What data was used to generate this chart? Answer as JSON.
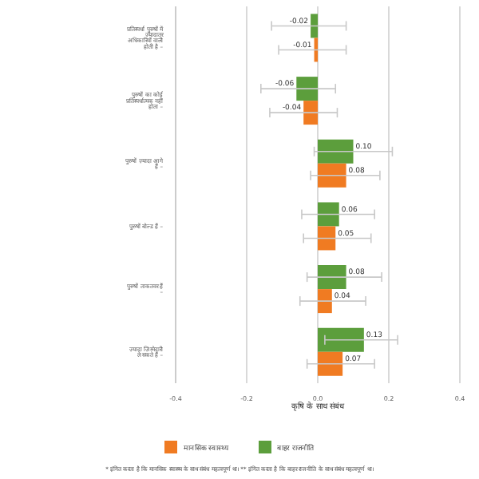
{
  "chart_data": {
    "type": "bar",
    "orientation": "horizontal",
    "xlabel": "कृषि के साथ संबंध",
    "categories": [
      "प्रतिस्पर्धा पुरुषों में ज़्यादातर अधिकारियों वाली होती है –",
      "पुरुषों का कोई प्रतिस्पर्धात्मक नहीं होता –",
      "पुरुषों ज़्यादा आगे हैं –",
      "पुरुषों बोल्ड हैं –",
      "पुरुषों ताकतवर हैं –",
      "ज़्यादा ज़िम्मेदारी ले सकते हैं –"
    ],
    "series": [
      {
        "name": "बाहर राजनीति",
        "color": "#5c9e3c",
        "values": [
          -0.02,
          -0.06,
          0.1,
          0.06,
          0.08,
          0.13
        ],
        "errors": [
          [
            -0.13,
            0.08
          ],
          [
            -0.16,
            0.05
          ],
          [
            -0.01,
            0.21
          ],
          [
            -0.045,
            0.16
          ],
          [
            -0.03,
            0.18
          ],
          [
            0.02,
            0.225
          ]
        ],
        "value_labels": [
          "-0.02",
          "-0.06",
          "0.10",
          "0.06",
          "0.08",
          "0.13"
        ]
      },
      {
        "name": "मानसिक स्वास्थ्य",
        "color": "#f07b22",
        "values": [
          -0.01,
          -0.04,
          0.08,
          0.05,
          0.04,
          0.07
        ],
        "errors": [
          [
            -0.11,
            0.08
          ],
          [
            -0.135,
            0.055
          ],
          [
            -0.02,
            0.175
          ],
          [
            -0.04,
            0.15
          ],
          [
            -0.05,
            0.135
          ],
          [
            -0.03,
            0.16
          ]
        ],
        "value_labels": [
          "-0.01",
          "-0.04",
          "0.08",
          "0.05",
          "0.04",
          "0.07"
        ]
      }
    ],
    "xlim": [
      -0.4,
      0.4
    ],
    "xticks": [
      -0.4,
      -0.2,
      {
        "value": 0,
        "label": "0.0"
      },
      0.2,
      0.4
    ],
    "grid": "x",
    "legend": "bottom",
    "annotations": [
      "* इंगित करता है कि मानसिक स्वास्थ्य के साथ संबंध महत्वपूर्ण था। ** इंगित करता है कि बाहर राजनीति के साथ संबंध महत्वपूर्ण था।"
    ]
  }
}
